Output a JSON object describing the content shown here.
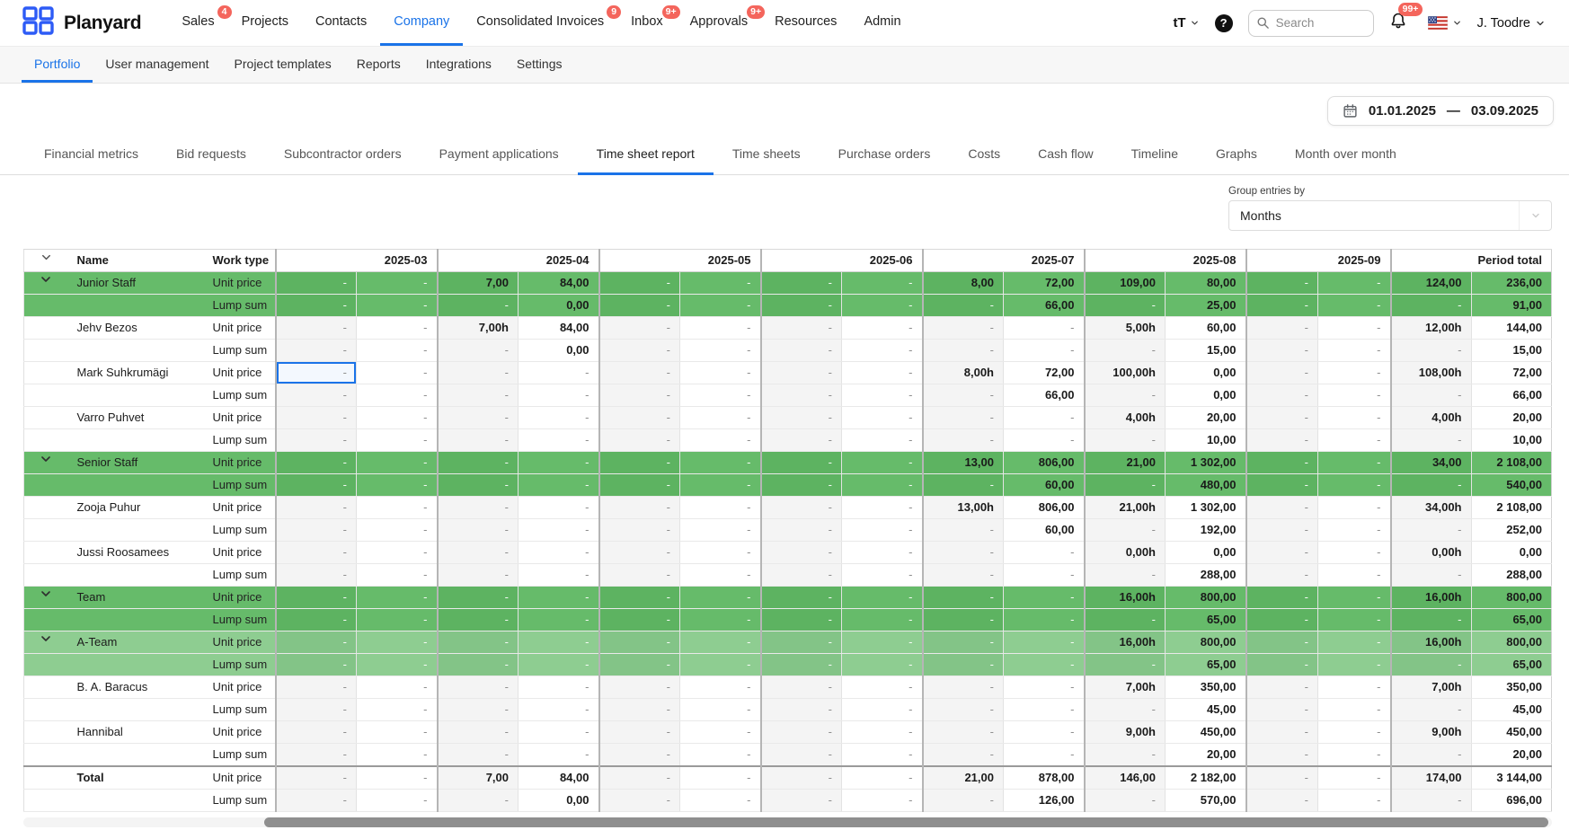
{
  "navbar": {
    "brand": "Planyard",
    "items": [
      {
        "label": "Sales",
        "badge": "4",
        "active": false
      },
      {
        "label": "Projects",
        "active": false
      },
      {
        "label": "Contacts",
        "active": false
      },
      {
        "label": "Company",
        "active": true
      },
      {
        "label": "Consolidated Invoices",
        "badge": "9",
        "active": false
      },
      {
        "label": "Inbox",
        "badge": "9+",
        "active": false
      },
      {
        "label": "Approvals",
        "badge": "9+",
        "active": false
      },
      {
        "label": "Resources",
        "active": false
      },
      {
        "label": "Admin",
        "active": false
      }
    ],
    "text_size_glyph": "tT",
    "help_glyph": "?",
    "search_placeholder": "Search",
    "bell_badge": "99+",
    "user": "J. Toodre"
  },
  "subnav": {
    "items": [
      {
        "label": "Portfolio",
        "active": true
      },
      {
        "label": "User management",
        "active": false
      },
      {
        "label": "Project templates",
        "active": false
      },
      {
        "label": "Reports",
        "active": false
      },
      {
        "label": "Integrations",
        "active": false
      },
      {
        "label": "Settings",
        "active": false
      }
    ]
  },
  "date_range": {
    "start": "01.01.2025",
    "sep": "—",
    "end": "03.09.2025"
  },
  "tabs": [
    {
      "label": "Financial metrics",
      "active": false
    },
    {
      "label": "Bid requests",
      "active": false
    },
    {
      "label": "Subcontractor orders",
      "active": false
    },
    {
      "label": "Payment applications",
      "active": false
    },
    {
      "label": "Time sheet report",
      "active": true
    },
    {
      "label": "Time sheets",
      "active": false
    },
    {
      "label": "Purchase orders",
      "active": false
    },
    {
      "label": "Costs",
      "active": false
    },
    {
      "label": "Cash flow",
      "active": false
    },
    {
      "label": "Timeline",
      "active": false
    },
    {
      "label": "Graphs",
      "active": false
    },
    {
      "label": "Month over month",
      "active": false
    }
  ],
  "group_by": {
    "label": "Group entries by",
    "value": "Months"
  },
  "table": {
    "headers": {
      "name": "Name",
      "work_type": "Work type",
      "period_total": "Period total"
    },
    "months": [
      "2025-03",
      "2025-04",
      "2025-05",
      "2025-06",
      "2025-07",
      "2025-08",
      "2025-09"
    ],
    "rows": [
      {
        "name": "Junior Staff",
        "work_type": "Unit price",
        "style": "group",
        "chevron": true,
        "cells": [
          "-",
          "-",
          "7,00",
          "84,00",
          "-",
          "-",
          "-",
          "-",
          "8,00",
          "72,00",
          "109,00",
          "80,00",
          "-",
          "-",
          "124,00",
          "236,00"
        ]
      },
      {
        "name": "",
        "work_type": "Lump sum",
        "style": "group",
        "cells": [
          "-",
          "-",
          "-",
          "0,00",
          "-",
          "-",
          "-",
          "-",
          "-",
          "66,00",
          "-",
          "25,00",
          "-",
          "-",
          "-",
          "91,00"
        ]
      },
      {
        "name": "Jehv Bezos",
        "work_type": "Unit price",
        "style": "member",
        "cells": [
          "-",
          "-",
          "7,00h",
          "84,00",
          "-",
          "-",
          "-",
          "-",
          "-",
          "-",
          "5,00h",
          "60,00",
          "-",
          "-",
          "12,00h",
          "144,00"
        ]
      },
      {
        "name": "",
        "work_type": "Lump sum",
        "style": "member",
        "cells": [
          "-",
          "-",
          "-",
          "0,00",
          "-",
          "-",
          "-",
          "-",
          "-",
          "-",
          "-",
          "15,00",
          "-",
          "-",
          "-",
          "15,00"
        ]
      },
      {
        "name": "Mark Suhkrumägi",
        "work_type": "Unit price",
        "style": "member",
        "focused_cell": 0,
        "cells": [
          "-",
          "-",
          "-",
          "-",
          "-",
          "-",
          "-",
          "-",
          "8,00h",
          "72,00",
          "100,00h",
          "0,00",
          "-",
          "-",
          "108,00h",
          "72,00"
        ]
      },
      {
        "name": "",
        "work_type": "Lump sum",
        "style": "member",
        "cells": [
          "-",
          "-",
          "-",
          "-",
          "-",
          "-",
          "-",
          "-",
          "-",
          "66,00",
          "-",
          "0,00",
          "-",
          "-",
          "-",
          "66,00"
        ]
      },
      {
        "name": "Varro Puhvet",
        "work_type": "Unit price",
        "style": "member",
        "cells": [
          "-",
          "-",
          "-",
          "-",
          "-",
          "-",
          "-",
          "-",
          "-",
          "-",
          "4,00h",
          "20,00",
          "-",
          "-",
          "4,00h",
          "20,00"
        ]
      },
      {
        "name": "",
        "work_type": "Lump sum",
        "style": "member",
        "cells": [
          "-",
          "-",
          "-",
          "-",
          "-",
          "-",
          "-",
          "-",
          "-",
          "-",
          "-",
          "10,00",
          "-",
          "-",
          "-",
          "10,00"
        ]
      },
      {
        "name": "Senior Staff",
        "work_type": "Unit price",
        "style": "group",
        "chevron": true,
        "cells": [
          "-",
          "-",
          "-",
          "-",
          "-",
          "-",
          "-",
          "-",
          "13,00",
          "806,00",
          "21,00",
          "1 302,00",
          "-",
          "-",
          "34,00",
          "2 108,00"
        ]
      },
      {
        "name": "",
        "work_type": "Lump sum",
        "style": "group",
        "cells": [
          "-",
          "-",
          "-",
          "-",
          "-",
          "-",
          "-",
          "-",
          "-",
          "60,00",
          "-",
          "480,00",
          "-",
          "-",
          "-",
          "540,00"
        ]
      },
      {
        "name": "Zooja Puhur",
        "work_type": "Unit price",
        "style": "member",
        "cells": [
          "-",
          "-",
          "-",
          "-",
          "-",
          "-",
          "-",
          "-",
          "13,00h",
          "806,00",
          "21,00h",
          "1 302,00",
          "-",
          "-",
          "34,00h",
          "2 108,00"
        ]
      },
      {
        "name": "",
        "work_type": "Lump sum",
        "style": "member",
        "cells": [
          "-",
          "-",
          "-",
          "-",
          "-",
          "-",
          "-",
          "-",
          "-",
          "60,00",
          "-",
          "192,00",
          "-",
          "-",
          "-",
          "252,00"
        ]
      },
      {
        "name": "Jussi Roosamees",
        "work_type": "Unit price",
        "style": "member",
        "cells": [
          "-",
          "-",
          "-",
          "-",
          "-",
          "-",
          "-",
          "-",
          "-",
          "-",
          "0,00h",
          "0,00",
          "-",
          "-",
          "0,00h",
          "0,00"
        ]
      },
      {
        "name": "",
        "work_type": "Lump sum",
        "style": "member",
        "cells": [
          "-",
          "-",
          "-",
          "-",
          "-",
          "-",
          "-",
          "-",
          "-",
          "-",
          "-",
          "288,00",
          "-",
          "-",
          "-",
          "288,00"
        ]
      },
      {
        "name": "Team",
        "work_type": "Unit price",
        "style": "group",
        "chevron": true,
        "cells": [
          "-",
          "-",
          "-",
          "-",
          "-",
          "-",
          "-",
          "-",
          "-",
          "-",
          "16,00h",
          "800,00",
          "-",
          "-",
          "16,00h",
          "800,00"
        ]
      },
      {
        "name": "",
        "work_type": "Lump sum",
        "style": "group",
        "cells": [
          "-",
          "-",
          "-",
          "-",
          "-",
          "-",
          "-",
          "-",
          "-",
          "-",
          "-",
          "65,00",
          "-",
          "-",
          "-",
          "65,00"
        ]
      },
      {
        "name": "A-Team",
        "work_type": "Unit price",
        "style": "subgroup",
        "chevron": true,
        "cells": [
          "-",
          "-",
          "-",
          "-",
          "-",
          "-",
          "-",
          "-",
          "-",
          "-",
          "16,00h",
          "800,00",
          "-",
          "-",
          "16,00h",
          "800,00"
        ]
      },
      {
        "name": "",
        "work_type": "Lump sum",
        "style": "subgroup",
        "cells": [
          "-",
          "-",
          "-",
          "-",
          "-",
          "-",
          "-",
          "-",
          "-",
          "-",
          "-",
          "65,00",
          "-",
          "-",
          "-",
          "65,00"
        ]
      },
      {
        "name": "B. A. Baracus",
        "work_type": "Unit price",
        "style": "member",
        "cells": [
          "-",
          "-",
          "-",
          "-",
          "-",
          "-",
          "-",
          "-",
          "-",
          "-",
          "7,00h",
          "350,00",
          "-",
          "-",
          "7,00h",
          "350,00"
        ]
      },
      {
        "name": "",
        "work_type": "Lump sum",
        "style": "member",
        "cells": [
          "-",
          "-",
          "-",
          "-",
          "-",
          "-",
          "-",
          "-",
          "-",
          "-",
          "-",
          "45,00",
          "-",
          "-",
          "-",
          "45,00"
        ]
      },
      {
        "name": "Hannibal",
        "work_type": "Unit price",
        "style": "member",
        "cells": [
          "-",
          "-",
          "-",
          "-",
          "-",
          "-",
          "-",
          "-",
          "-",
          "-",
          "9,00h",
          "450,00",
          "-",
          "-",
          "9,00h",
          "450,00"
        ]
      },
      {
        "name": "",
        "work_type": "Lump sum",
        "style": "member",
        "cells": [
          "-",
          "-",
          "-",
          "-",
          "-",
          "-",
          "-",
          "-",
          "-",
          "-",
          "-",
          "20,00",
          "-",
          "-",
          "-",
          "20,00"
        ]
      },
      {
        "name": "Total",
        "work_type": "Unit price",
        "style": "member",
        "bold": true,
        "sep_above": true,
        "cells": [
          "-",
          "-",
          "7,00",
          "84,00",
          "-",
          "-",
          "-",
          "-",
          "21,00",
          "878,00",
          "146,00",
          "2 182,00",
          "-",
          "-",
          "174,00",
          "3 144,00"
        ]
      },
      {
        "name": "",
        "work_type": "Lump sum",
        "style": "member",
        "bold": true,
        "cells": [
          "-",
          "-",
          "-",
          "0,00",
          "-",
          "-",
          "-",
          "-",
          "-",
          "126,00",
          "-",
          "570,00",
          "-",
          "-",
          "-",
          "696,00"
        ]
      }
    ]
  },
  "colors": {
    "accent": "#1a73e8",
    "badge": "#f4655c",
    "group_row": "#66bb6a",
    "subgroup_row": "#8ecd91",
    "focused_cell_border": "#1a73e8"
  }
}
